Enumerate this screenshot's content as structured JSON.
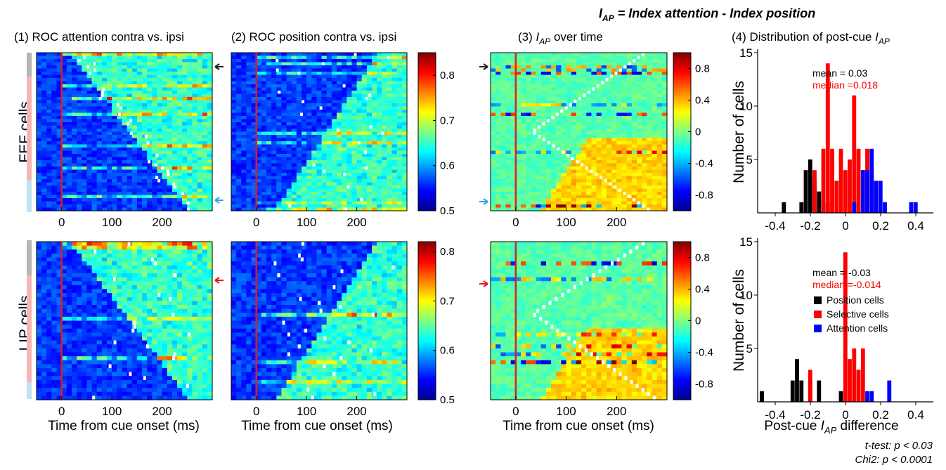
{
  "figure": {
    "supertitle": "I",
    "supertitle_sub": "AP",
    "supertitle_rest": " = Index attention - Index position",
    "titles": {
      "p1": "(1) ROC attention contra vs. ipsi",
      "p2": "(2) ROC position contra vs. ipsi",
      "p3_pre": "(3) ",
      "p3_i": "I",
      "p3_sub": "AP",
      "p3_post": "  over time",
      "p4_pre": "(4) Distribution of  post-cue ",
      "p4_i": "I",
      "p4_sub": "AP"
    },
    "row_labels": {
      "fef": "FEF cells",
      "lip": "LIP cells"
    },
    "x_axis_label": "Time from cue onset (ms)",
    "hist_xlabel_pre": "Post-cue ",
    "hist_xlabel_i": "I",
    "hist_xlabel_sub": "AP",
    "hist_xlabel_post": " difference",
    "hist_ylabel": "Number of cells",
    "footnotes": [
      "t-test: p < 0.03",
      "Chi2: p < 0.0001"
    ],
    "fef_stats": {
      "mean": "mean = 0.03",
      "median": "median =0.018"
    },
    "lip_stats": {
      "mean": "mean = -0.03",
      "median": "median =-0.014"
    },
    "legend": [
      "Position cells",
      "Selective cells",
      "Attention cells"
    ],
    "colors": {
      "position": "#000000",
      "selective": "#ff0000",
      "attention": "#0000ff",
      "cue_line": "#e41a1c",
      "arrow_black": "#222222",
      "arrow_cyan": "#29a8e0",
      "arrow_red": "#e8141a",
      "group_gray": "#b5b5b5",
      "group_pink": "#f5b5b5",
      "group_cyan": "#bfe3f3"
    }
  },
  "chart_data": [
    {
      "type": "heatmap",
      "panel": "FEF ROC attention",
      "x_ticks": [
        "0",
        "100",
        "200"
      ],
      "x_range_ms": [
        -50,
        300
      ],
      "cue_time_ms": 0,
      "cells": 50,
      "clim": [
        0.5,
        0.85
      ],
      "colorbar_ticks": [
        "0.5",
        "0.6",
        "0.7",
        "0.8"
      ],
      "arrows": [
        {
          "color": "black",
          "cell": 5
        },
        {
          "color": "cyan",
          "cell": 47
        }
      ]
    },
    {
      "type": "heatmap",
      "panel": "FEF ROC position",
      "x_ticks": [
        "0",
        "100",
        "200"
      ],
      "x_range_ms": [
        -50,
        300
      ],
      "cue_time_ms": 0,
      "cells": 50,
      "clim": [
        0.5,
        0.85
      ],
      "colorbar_ticks": [
        "0.5",
        "0.6",
        "0.7",
        "0.8"
      ]
    },
    {
      "type": "heatmap",
      "panel": "FEF I_AP over time",
      "x_ticks": [
        "0",
        "100",
        "200"
      ],
      "x_range_ms": [
        -50,
        300
      ],
      "cue_time_ms": 0,
      "cells": 50,
      "clim": [
        -1,
        1
      ],
      "colorbar_ticks": [
        "0.8",
        "0.4",
        "0",
        "-0.4",
        "-0.8"
      ],
      "arrows": [
        {
          "color": "black",
          "cell": 5
        },
        {
          "color": "cyan",
          "cell": 47
        }
      ]
    },
    {
      "type": "bar",
      "panel": "FEF distribution of post-cue I_AP",
      "x_ticks": [
        "-0.4",
        "-0.2",
        "0",
        "0.2",
        "0.4"
      ],
      "xlim": [
        -0.5,
        0.5
      ],
      "y_ticks": [
        "5",
        "10",
        "15"
      ],
      "ylim": [
        0,
        15
      ],
      "bin_width": 0.025,
      "series": [
        {
          "name": "Position cells",
          "bins": [
            [
              -0.35,
              1
            ],
            [
              -0.25,
              1
            ],
            [
              -0.225,
              4
            ],
            [
              -0.2,
              5
            ],
            [
              -0.175,
              3
            ],
            [
              -0.15,
              2
            ],
            [
              -0.125,
              1
            ],
            [
              -0.1,
              1
            ]
          ]
        },
        {
          "name": "Selective cells",
          "bins": [
            [
              -0.175,
              4
            ],
            [
              -0.125,
              6
            ],
            [
              -0.1,
              14
            ],
            [
              -0.075,
              6
            ],
            [
              -0.05,
              3
            ],
            [
              -0.025,
              6
            ],
            [
              0.0,
              4
            ],
            [
              0.025,
              5
            ],
            [
              0.05,
              11
            ],
            [
              0.075,
              6
            ],
            [
              0.1,
              4
            ],
            [
              0.125,
              6
            ],
            [
              0.15,
              4
            ]
          ]
        },
        {
          "name": "Attention cells",
          "bins": [
            [
              0.05,
              1
            ],
            [
              0.1,
              4
            ],
            [
              0.125,
              4
            ],
            [
              0.15,
              6
            ],
            [
              0.175,
              3
            ],
            [
              0.2,
              3
            ],
            [
              0.225,
              1
            ],
            [
              0.375,
              1
            ],
            [
              0.4,
              1
            ]
          ]
        }
      ]
    },
    {
      "type": "heatmap",
      "panel": "LIP ROC attention",
      "x_ticks": [
        "0",
        "100",
        "200"
      ],
      "x_range_ms": [
        -50,
        300
      ],
      "cue_time_ms": 0,
      "cells": 40,
      "clim": [
        0.5,
        0.82
      ],
      "colorbar_ticks": [
        "0.5",
        "0.6",
        "0.7",
        "0.8"
      ],
      "arrows": [
        {
          "color": "red",
          "cell": 9
        }
      ]
    },
    {
      "type": "heatmap",
      "panel": "LIP ROC position",
      "x_ticks": [
        "0",
        "100",
        "200"
      ],
      "x_range_ms": [
        -50,
        300
      ],
      "cue_time_ms": 0,
      "cells": 40,
      "clim": [
        0.5,
        0.82
      ],
      "colorbar_ticks": [
        "0.5",
        "0.6",
        "0.7",
        "0.8"
      ]
    },
    {
      "type": "heatmap",
      "panel": "LIP I_AP over time",
      "x_ticks": [
        "0",
        "100",
        "200"
      ],
      "x_range_ms": [
        -50,
        300
      ],
      "cue_time_ms": 0,
      "cells": 40,
      "clim": [
        -1,
        1
      ],
      "colorbar_ticks": [
        "0.8",
        "0.4",
        "0",
        "-0.4",
        "-0.8"
      ],
      "arrows": [
        {
          "color": "red",
          "cell": 9
        }
      ]
    },
    {
      "type": "bar",
      "panel": "LIP distribution of post-cue I_AP",
      "x_ticks": [
        "-0.4",
        "-0.2",
        "0",
        "0.2",
        "0.4"
      ],
      "xlim": [
        -0.5,
        0.5
      ],
      "y_ticks": [
        "5",
        "10",
        "15"
      ],
      "ylim": [
        0,
        15
      ],
      "bin_width": 0.025,
      "series": [
        {
          "name": "Position cells",
          "bins": [
            [
              -0.475,
              1
            ],
            [
              -0.3,
              2
            ],
            [
              -0.275,
              4
            ],
            [
              -0.25,
              2
            ],
            [
              -0.2,
              2
            ],
            [
              -0.15,
              2
            ],
            [
              -0.025,
              1
            ]
          ]
        },
        {
          "name": "Selective cells",
          "bins": [
            [
              -0.2,
              3
            ],
            [
              0.0,
              14
            ],
            [
              0.025,
              4
            ],
            [
              0.05,
              5
            ],
            [
              0.075,
              3
            ],
            [
              0.1,
              5
            ]
          ]
        },
        {
          "name": "Attention cells",
          "bins": [
            [
              0.125,
              1
            ],
            [
              0.15,
              1
            ],
            [
              0.25,
              2
            ]
          ]
        }
      ]
    }
  ]
}
